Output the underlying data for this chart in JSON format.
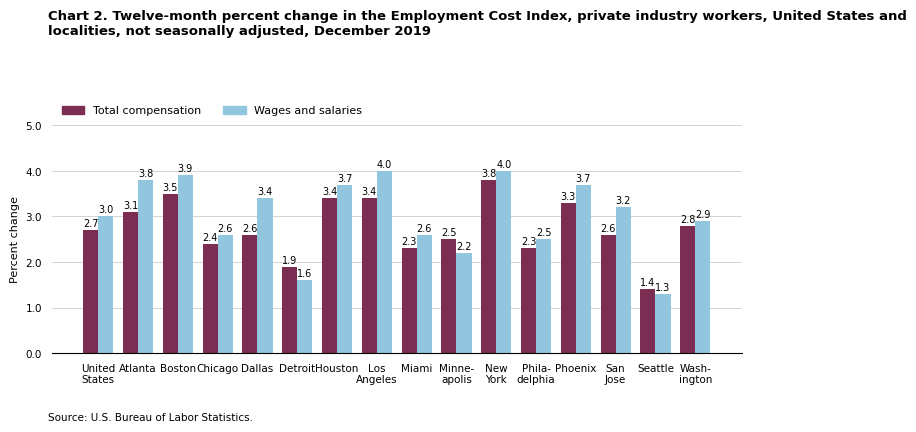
{
  "title_line1": "Chart 2. Twelve-month percent change in the Employment Cost Index, private industry workers, United States and",
  "title_line2": "localities, not seasonally adjusted, December 2019",
  "ylabel": "Percent change",
  "source": "Source: U.S. Bureau of Labor Statistics.",
  "categories": [
    "United\nStates",
    "Atlanta",
    "Boston",
    "Chicago",
    "Dallas",
    "Detroit",
    "Houston",
    "Los\nAngeles",
    "Miami",
    "Minne-\napolis",
    "New\nYork",
    "Phila-\ndelphia",
    "Phoenix",
    "San\nJose",
    "Seattle",
    "Wash-\nington"
  ],
  "total_compensation": [
    2.7,
    3.1,
    3.5,
    2.4,
    2.6,
    1.9,
    3.4,
    3.4,
    2.3,
    2.5,
    3.8,
    2.3,
    3.3,
    2.6,
    1.4,
    2.8
  ],
  "wages_salaries": [
    3.0,
    3.8,
    3.9,
    2.6,
    3.4,
    1.6,
    3.7,
    4.0,
    2.6,
    2.2,
    4.0,
    2.5,
    3.7,
    3.2,
    1.3,
    2.9
  ],
  "color_total": "#7B2D52",
  "color_wages": "#92C5DE",
  "ylim": [
    0.0,
    5.0
  ],
  "yticks": [
    0.0,
    1.0,
    2.0,
    3.0,
    4.0,
    5.0
  ],
  "bar_width": 0.38,
  "legend_labels": [
    "Total compensation",
    "Wages and salaries"
  ],
  "title_fontsize": 9.5,
  "label_fontsize": 8,
  "tick_fontsize": 7.5,
  "value_fontsize": 7
}
